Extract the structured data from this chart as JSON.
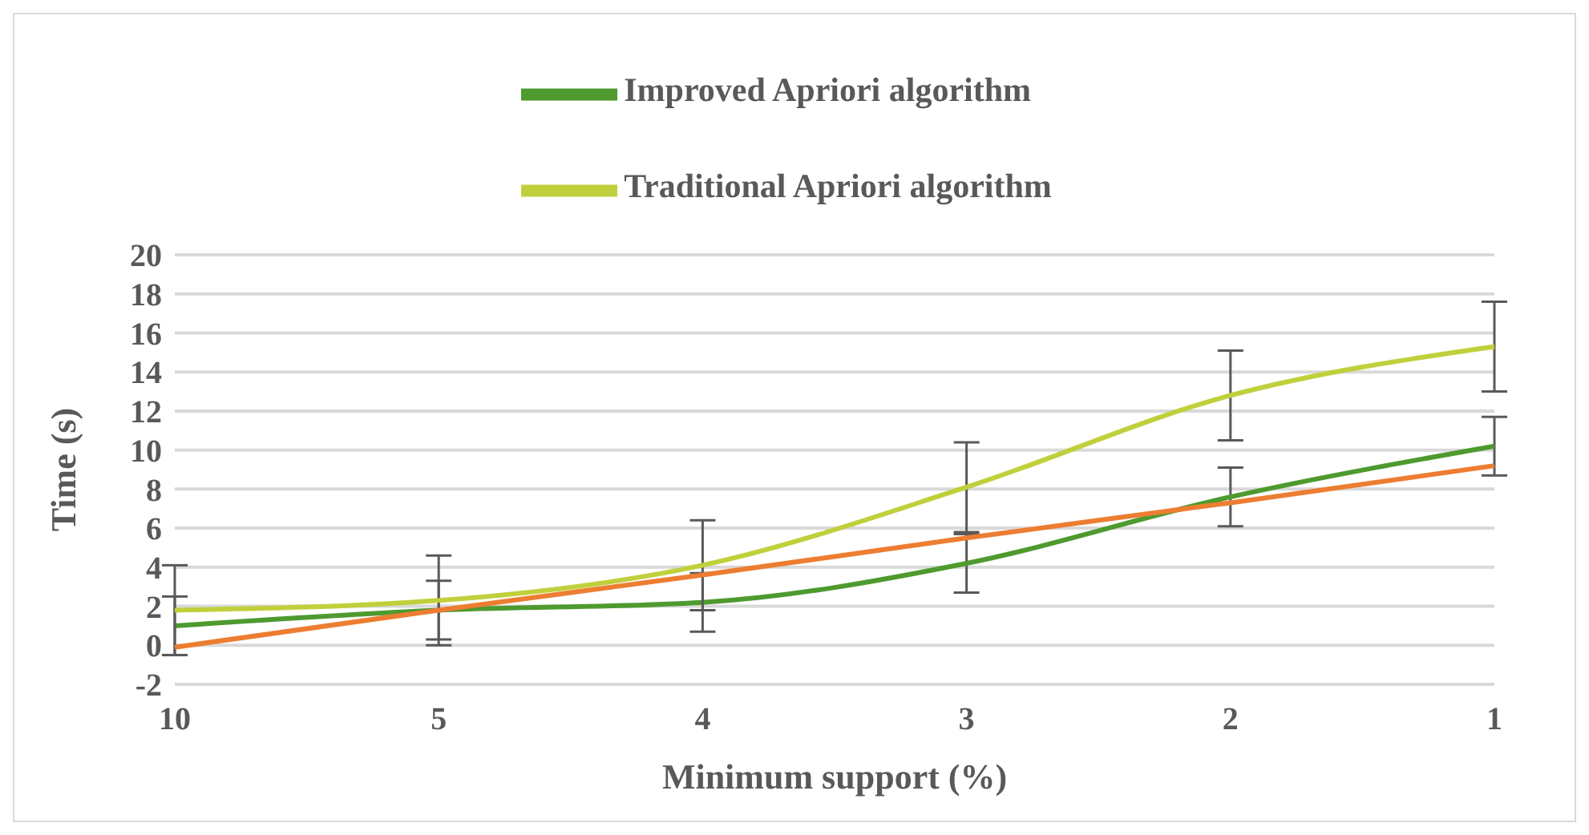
{
  "chart_data": {
    "type": "line",
    "xlabel": "Minimum support (%)",
    "ylabel": "Time (s)",
    "categories": [
      "10",
      "5",
      "4",
      "3",
      "2",
      "1"
    ],
    "series": [
      {
        "name": "Improved Apriori algorithm",
        "color": "#4e9a2f",
        "values": [
          1.0,
          1.8,
          2.2,
          4.2,
          7.6,
          10.2
        ],
        "errors": [
          1.5,
          1.5,
          1.5,
          1.5,
          1.5,
          1.5
        ]
      },
      {
        "name": "Traditional Apriori algorithm",
        "color": "#c0d03c",
        "values": [
          1.8,
          2.3,
          4.1,
          8.1,
          12.8,
          15.3
        ],
        "errors": [
          2.3,
          2.3,
          2.3,
          2.3,
          2.3,
          2.3
        ]
      },
      {
        "type": "line",
        "color": "#ed7d31",
        "values": [
          -0.1,
          1.8,
          3.6,
          5.5,
          7.3,
          9.2
        ]
      }
    ],
    "ylim": [
      -2,
      20
    ],
    "yticks": [
      -2,
      0,
      2,
      4,
      6,
      8,
      10,
      12,
      14,
      16,
      18,
      20
    ],
    "grid": "y",
    "legend": "top"
  }
}
